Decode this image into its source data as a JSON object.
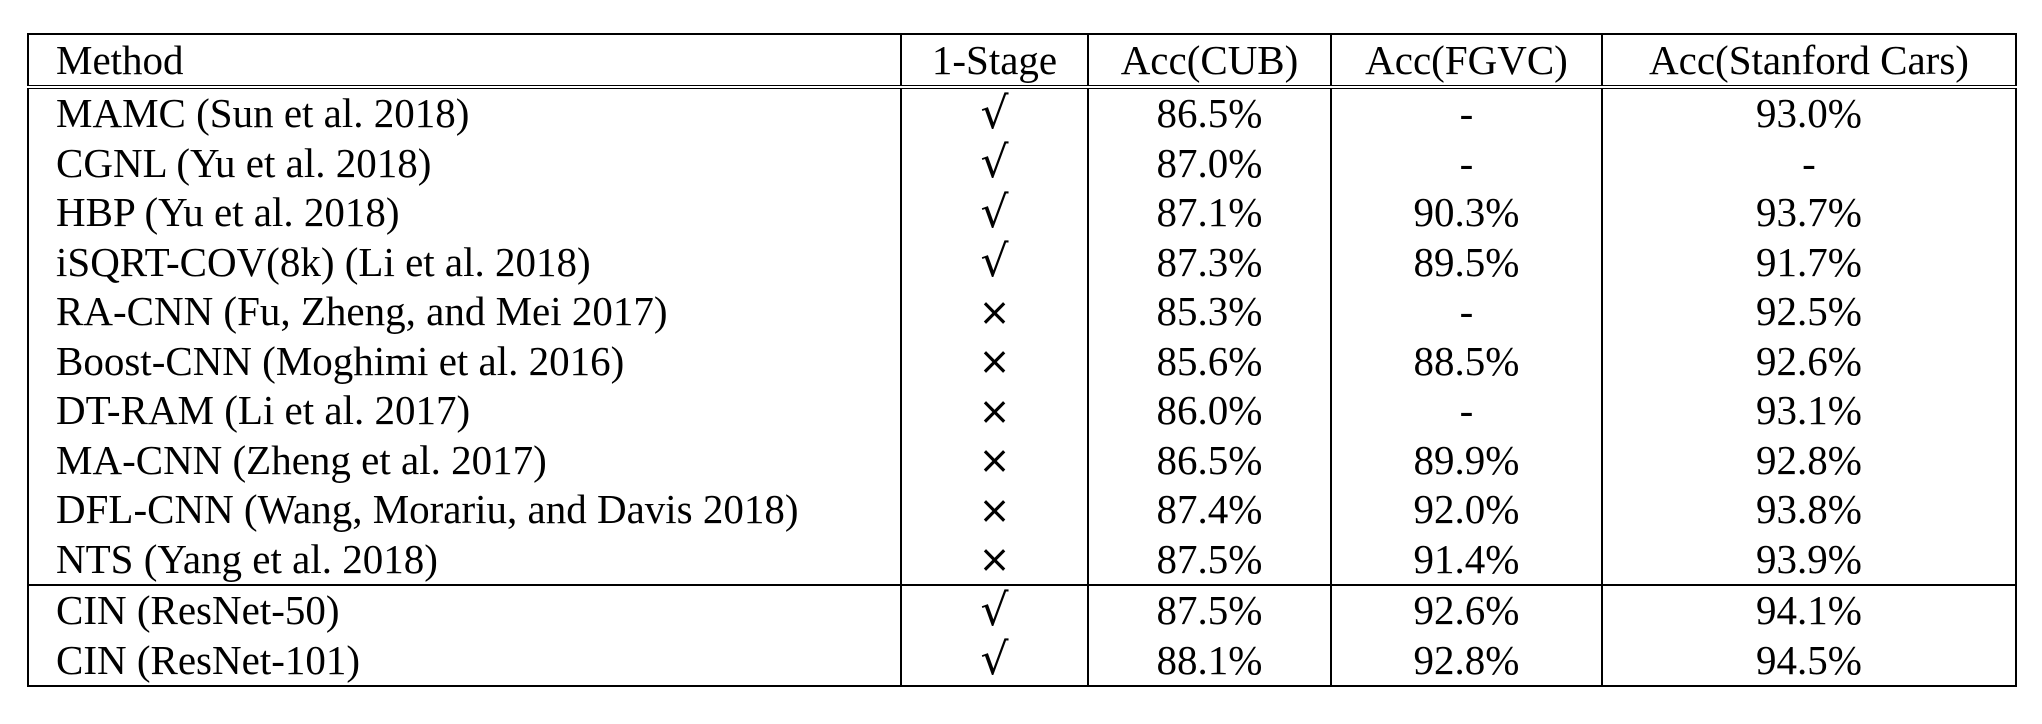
{
  "table": {
    "headers": [
      "Method",
      "1-Stage",
      "Acc(CUB)",
      "Acc(FGVC)",
      "Acc(Stanford Cars)"
    ],
    "rows": [
      {
        "method": "MAMC (Sun et al. 2018)",
        "one_stage": "√",
        "cub": "86.5%",
        "fgvc": "-",
        "cars": "93.0%"
      },
      {
        "method": "CGNL (Yu et al. 2018)",
        "one_stage": "√",
        "cub": "87.0%",
        "fgvc": "-",
        "cars": "-"
      },
      {
        "method": "HBP (Yu et al. 2018)",
        "one_stage": "√",
        "cub": "87.1%",
        "fgvc": "90.3%",
        "cars": "93.7%"
      },
      {
        "method": "iSQRT-COV(8k) (Li et al. 2018)",
        "one_stage": "√",
        "cub": "87.3%",
        "fgvc": "89.5%",
        "cars": "91.7%"
      },
      {
        "method": "RA-CNN (Fu, Zheng, and Mei 2017)",
        "one_stage": "×",
        "cub": "85.3%",
        "fgvc": "-",
        "cars": "92.5%"
      },
      {
        "method": "Boost-CNN (Moghimi et al. 2016)",
        "one_stage": "×",
        "cub": "85.6%",
        "fgvc": "88.5%",
        "cars": "92.6%"
      },
      {
        "method": "DT-RAM (Li et al. 2017)",
        "one_stage": "×",
        "cub": "86.0%",
        "fgvc": "-",
        "cars": "93.1%"
      },
      {
        "method": "MA-CNN (Zheng et al. 2017)",
        "one_stage": "×",
        "cub": "86.5%",
        "fgvc": "89.9%",
        "cars": "92.8%"
      },
      {
        "method": "DFL-CNN (Wang, Morariu, and Davis 2018)",
        "one_stage": "×",
        "cub": "87.4%",
        "fgvc": "92.0%",
        "cars": "93.8%"
      },
      {
        "method": "NTS (Yang et al. 2018)",
        "one_stage": "×",
        "cub": "87.5%",
        "fgvc": "91.4%",
        "cars": "93.9%"
      },
      {
        "method": "CIN (ResNet-50)",
        "one_stage": "√",
        "cub": "87.5%",
        "fgvc": "92.6%",
        "cars": "94.1%"
      },
      {
        "method": "CIN (ResNet-101)",
        "one_stage": "√",
        "cub": "88.1%",
        "fgvc": "92.8%",
        "cars": "94.5%",
        "bold": true
      }
    ]
  }
}
